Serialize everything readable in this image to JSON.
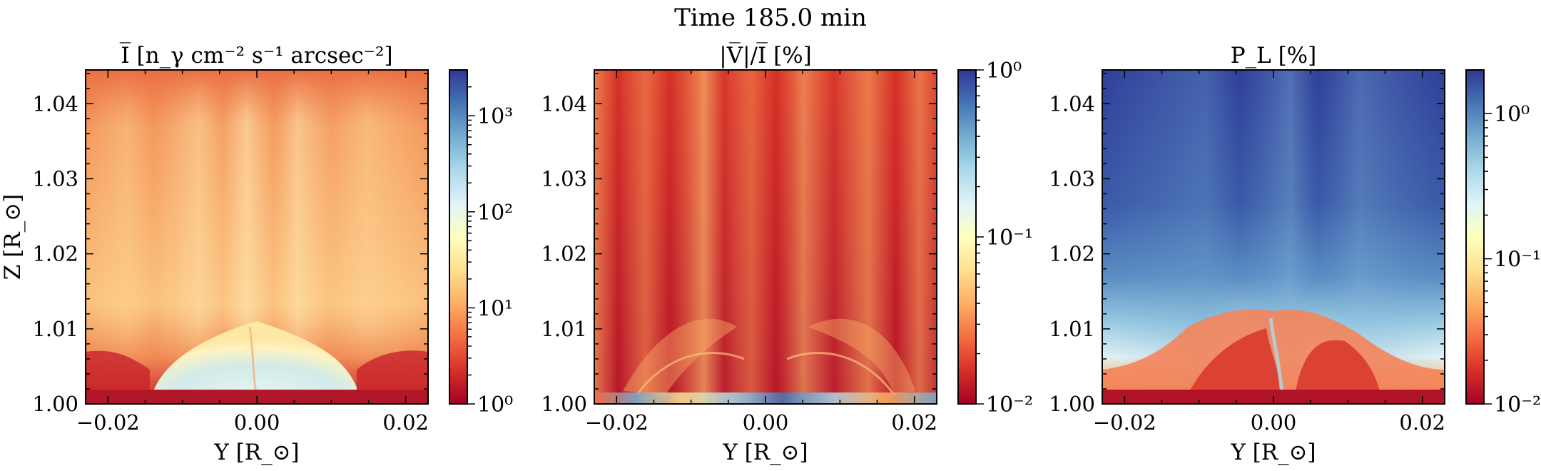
{
  "suptitle": "Time 185.0 min",
  "colormap": {
    "name": "RdYlBu",
    "stops": [
      "#a50026",
      "#d73027",
      "#f46d43",
      "#fdae61",
      "#fee090",
      "#ffffbf",
      "#e0f3f8",
      "#abd9e9",
      "#74add1",
      "#4575b4",
      "#313695"
    ]
  },
  "chart_data": [
    {
      "type": "heatmap",
      "title": "I̅ [n_γ cm⁻² s⁻¹ arcsec⁻²]",
      "xlabel": "Y [R_⊙]",
      "ylabel": "Z [R_⊙]",
      "xlim": [
        -0.023,
        0.023
      ],
      "ylim": [
        1.0,
        1.0445
      ],
      "xticks": [
        -0.02,
        0.0,
        0.02
      ],
      "xtick_labels": [
        "−0.02",
        "0.00",
        "0.02"
      ],
      "yticks": [
        1.0,
        1.01,
        1.02,
        1.03,
        1.04
      ],
      "ytick_labels": [
        "1.00",
        "1.01",
        "1.02",
        "1.03",
        "1.04"
      ],
      "colorbar": {
        "scale": "log",
        "range": [
          1,
          3000
        ],
        "ticks": [
          1,
          10,
          100,
          1000
        ],
        "tick_labels": [
          "10⁰",
          "10¹",
          "10²",
          "10³"
        ]
      }
    },
    {
      "type": "heatmap",
      "title": "|V̅|/I̅ [%]",
      "xlabel": "Y [R_⊙]",
      "ylabel": "",
      "xlim": [
        -0.023,
        0.023
      ],
      "ylim": [
        1.0,
        1.0445
      ],
      "xticks": [
        -0.02,
        0.0,
        0.02
      ],
      "xtick_labels": [
        "−0.02",
        "0.00",
        "0.02"
      ],
      "yticks": [
        1.0,
        1.01,
        1.02,
        1.03,
        1.04
      ],
      "ytick_labels": [
        "1.00",
        "1.01",
        "1.02",
        "1.03",
        "1.04"
      ],
      "colorbar": {
        "scale": "log",
        "range": [
          0.01,
          1
        ],
        "ticks": [
          0.01,
          0.1,
          1
        ],
        "tick_labels": [
          "10⁻²",
          "10⁻¹",
          "10⁰"
        ]
      }
    },
    {
      "type": "heatmap",
      "title": "P_L [%]",
      "xlabel": "Y [R_⊙]",
      "ylabel": "",
      "xlim": [
        -0.023,
        0.023
      ],
      "ylim": [
        1.0,
        1.0445
      ],
      "xticks": [
        -0.02,
        0.0,
        0.02
      ],
      "xtick_labels": [
        "−0.02",
        "0.00",
        "0.02"
      ],
      "yticks": [
        1.0,
        1.01,
        1.02,
        1.03,
        1.04
      ],
      "ytick_labels": [
        "1.00",
        "1.01",
        "1.02",
        "1.03",
        "1.04"
      ],
      "colorbar": {
        "scale": "log",
        "range": [
          0.01,
          2
        ],
        "ticks": [
          0.01,
          0.1,
          1
        ],
        "tick_labels": [
          "10⁻²",
          "10⁻¹",
          "10⁰"
        ]
      }
    }
  ]
}
